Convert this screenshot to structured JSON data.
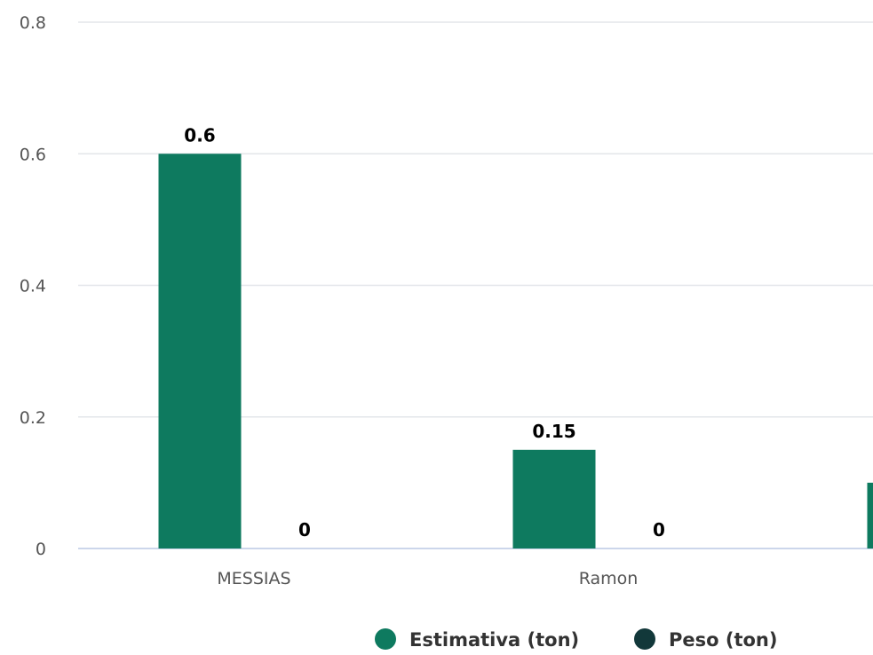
{
  "chart_data": {
    "type": "bar",
    "categories": [
      "MESSIAS",
      "Ramon",
      ""
    ],
    "series": [
      {
        "name": "Estimativa (ton)",
        "color": "#0e7a5f",
        "values": [
          0.6,
          0.15,
          0.1
        ]
      },
      {
        "name": "Peso (ton)",
        "color": "#12383a",
        "values": [
          0,
          0,
          null
        ]
      }
    ],
    "data_labels": [
      [
        "0.6",
        "0.15",
        ""
      ],
      [
        "0",
        "0",
        ""
      ]
    ],
    "yticks": [
      "0",
      "0.2",
      "0.4",
      "0.6",
      "0.8"
    ],
    "ylim": [
      0,
      0.8
    ],
    "grid": true,
    "legend_position": "bottom-center",
    "title": "",
    "xlabel": "",
    "ylabel": ""
  }
}
